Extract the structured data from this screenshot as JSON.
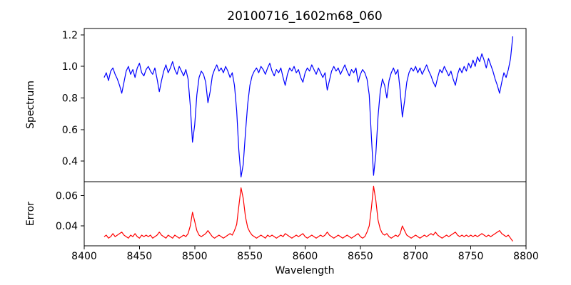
{
  "chart_data": {
    "type": "line",
    "title": "20100716_1602m68_060",
    "xlabel": "Wavelength",
    "grid": false,
    "legend": "none",
    "xlim": [
      8400,
      8800
    ],
    "xticks": [
      8400,
      8450,
      8500,
      8550,
      8600,
      8650,
      8700,
      8750,
      8800
    ],
    "x_start": 8418,
    "x_step": 2,
    "panels": [
      {
        "name": "spectrum",
        "ylabel": "Spectrum",
        "color": "#0000ff",
        "ylim": [
          0.27,
          1.24
        ],
        "yticks": [
          "0.4",
          "0.6",
          "0.8",
          "1.0",
          "1.2"
        ],
        "features": "normalized stellar spectrum, Ca II triplet absorption lines near 8498, 8542, 8662",
        "values": [
          0.93,
          0.96,
          0.91,
          0.97,
          0.99,
          0.95,
          0.92,
          0.88,
          0.83,
          0.9,
          0.97,
          1.0,
          0.95,
          0.98,
          0.93,
          0.99,
          1.02,
          0.96,
          0.94,
          0.98,
          1.0,
          0.97,
          0.95,
          0.99,
          0.92,
          0.84,
          0.91,
          0.97,
          1.01,
          0.96,
          0.99,
          1.03,
          0.98,
          0.95,
          1.0,
          0.97,
          0.94,
          0.98,
          0.92,
          0.75,
          0.52,
          0.63,
          0.82,
          0.93,
          0.97,
          0.95,
          0.9,
          0.77,
          0.84,
          0.94,
          0.98,
          1.01,
          0.97,
          0.99,
          0.96,
          1.0,
          0.97,
          0.93,
          0.96,
          0.88,
          0.72,
          0.47,
          0.3,
          0.38,
          0.58,
          0.76,
          0.88,
          0.94,
          0.97,
          0.99,
          0.96,
          1.0,
          0.98,
          0.95,
          0.99,
          1.02,
          0.97,
          0.94,
          0.98,
          0.96,
          0.99,
          0.93,
          0.88,
          0.95,
          0.99,
          0.97,
          1.0,
          0.96,
          0.98,
          0.93,
          0.9,
          0.96,
          0.99,
          0.97,
          1.01,
          0.98,
          0.95,
          0.99,
          0.96,
          0.93,
          0.96,
          0.85,
          0.91,
          0.97,
          1.0,
          0.97,
          0.99,
          0.95,
          0.98,
          1.01,
          0.97,
          0.94,
          0.98,
          0.96,
          0.99,
          0.9,
          0.95,
          0.98,
          0.96,
          0.92,
          0.82,
          0.55,
          0.31,
          0.44,
          0.68,
          0.84,
          0.92,
          0.88,
          0.8,
          0.91,
          0.96,
          0.99,
          0.95,
          0.98,
          0.85,
          0.68,
          0.78,
          0.9,
          0.96,
          0.99,
          0.97,
          1.0,
          0.96,
          0.99,
          0.95,
          0.98,
          1.01,
          0.97,
          0.94,
          0.9,
          0.87,
          0.93,
          0.98,
          0.96,
          1.0,
          0.97,
          0.94,
          0.97,
          0.92,
          0.88,
          0.95,
          0.99,
          0.96,
          1.0,
          0.97,
          1.02,
          0.99,
          1.04,
          1.0,
          1.06,
          1.03,
          1.08,
          1.04,
          0.99,
          1.05,
          1.01,
          0.97,
          0.92,
          0.88,
          0.83,
          0.9,
          0.96,
          0.93,
          0.98,
          1.05,
          1.19
        ]
      },
      {
        "name": "error",
        "ylabel": "Error",
        "color": "#ff0000",
        "ylim": [
          0.027,
          0.069
        ],
        "yticks": [
          "0.04",
          "0.06"
        ],
        "features": "error spectrum, baseline ~0.033 with peaks at absorption line cores",
        "values": [
          0.033,
          0.034,
          0.032,
          0.033,
          0.035,
          0.033,
          0.034,
          0.035,
          0.036,
          0.034,
          0.033,
          0.032,
          0.034,
          0.033,
          0.035,
          0.033,
          0.032,
          0.034,
          0.033,
          0.034,
          0.033,
          0.034,
          0.032,
          0.033,
          0.034,
          0.036,
          0.034,
          0.033,
          0.032,
          0.034,
          0.033,
          0.032,
          0.034,
          0.033,
          0.032,
          0.033,
          0.034,
          0.033,
          0.035,
          0.04,
          0.049,
          0.043,
          0.037,
          0.034,
          0.033,
          0.034,
          0.035,
          0.037,
          0.035,
          0.033,
          0.032,
          0.033,
          0.034,
          0.033,
          0.032,
          0.033,
          0.034,
          0.035,
          0.034,
          0.037,
          0.041,
          0.053,
          0.065,
          0.058,
          0.046,
          0.039,
          0.036,
          0.034,
          0.033,
          0.032,
          0.033,
          0.034,
          0.033,
          0.032,
          0.034,
          0.033,
          0.034,
          0.033,
          0.032,
          0.033,
          0.034,
          0.033,
          0.035,
          0.034,
          0.033,
          0.032,
          0.033,
          0.034,
          0.033,
          0.034,
          0.035,
          0.033,
          0.032,
          0.033,
          0.034,
          0.033,
          0.032,
          0.033,
          0.034,
          0.033,
          0.034,
          0.036,
          0.034,
          0.033,
          0.032,
          0.033,
          0.034,
          0.033,
          0.032,
          0.033,
          0.034,
          0.033,
          0.032,
          0.033,
          0.034,
          0.035,
          0.033,
          0.032,
          0.033,
          0.036,
          0.04,
          0.052,
          0.066,
          0.057,
          0.044,
          0.038,
          0.035,
          0.034,
          0.035,
          0.033,
          0.032,
          0.033,
          0.034,
          0.033,
          0.035,
          0.04,
          0.037,
          0.034,
          0.033,
          0.032,
          0.033,
          0.034,
          0.033,
          0.032,
          0.033,
          0.034,
          0.033,
          0.034,
          0.035,
          0.034,
          0.036,
          0.034,
          0.033,
          0.032,
          0.033,
          0.034,
          0.033,
          0.034,
          0.035,
          0.036,
          0.034,
          0.033,
          0.034,
          0.033,
          0.034,
          0.033,
          0.034,
          0.033,
          0.034,
          0.033,
          0.034,
          0.035,
          0.034,
          0.033,
          0.034,
          0.033,
          0.034,
          0.035,
          0.036,
          0.037,
          0.035,
          0.034,
          0.033,
          0.034,
          0.032,
          0.03
        ]
      }
    ]
  }
}
